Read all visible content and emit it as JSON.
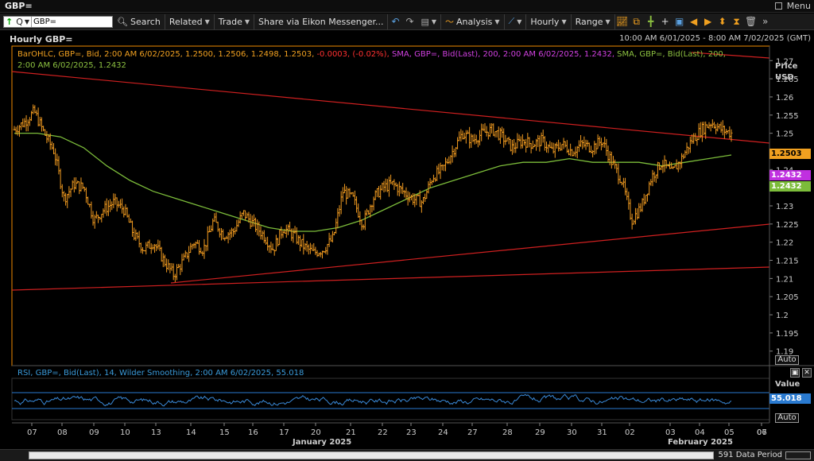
{
  "window": {
    "title": "GBP=",
    "menu_label": "Menu"
  },
  "toolbar": {
    "ric_value": "GBP=",
    "ric_mode": "Q",
    "search_label": "Search",
    "related_label": "Related",
    "trade_label": "Trade",
    "share_label": "Share via Eikon Messenger...",
    "analysis_label": "Analysis",
    "interval_label": "Hourly",
    "range_label": "Range"
  },
  "chart": {
    "title": "Hourly GBP=",
    "date_range": "10:00 AM 6/01/2025 - 8:00 AM 7/02/2025 (GMT)",
    "legend_ohlc_a": "BarOHLC, GBP=, Bid,  2:00 AM 6/02/2025,  1.2500,  1.2506,  1.2498,  1.2503, ",
    "legend_ohlc_b": "-0.0003,  (-0.02%),",
    "legend_sma_magenta": "  SMA, GBP=, Bid(Last),  200,  2:00 AM 6/02/2025,  1.2432,",
    "legend_sma_green": "  SMA, GBP=, Bid(Last),  200,",
    "legend_sma_green_2": "2:00 AM 6/02/2025,  1.2432",
    "price_axis_title": "Price",
    "price_axis_unit": "USD",
    "auto_label": "Auto",
    "last_price": "1.2503",
    "sma_badge_magenta": "1.2432",
    "sma_badge_green": "1.2432"
  },
  "rsi": {
    "legend": "RSI, GBP=, Bid(Last),  14, Wilder Smoothing,  2:00 AM 6/02/2025,  55.018",
    "axis_title": "Value",
    "value": "55.018",
    "auto_label": "Auto"
  },
  "xaxis": {
    "ticks": [
      "07",
      "08",
      "09",
      "10",
      "13",
      "14",
      "15",
      "16",
      "17",
      "20",
      "21",
      "22",
      "23",
      "24",
      "27",
      "28",
      "29",
      "30",
      "31",
      "02",
      "03",
      "04",
      "05",
      "06",
      "07"
    ],
    "month_labels": [
      "January 2025",
      "February 2025"
    ]
  },
  "status": {
    "data_period": "591 Data Period"
  },
  "chart_data": {
    "type": "line",
    "series_type": "ohlc-bars",
    "yaxis": {
      "ticks": [
        "1.27",
        "1.265",
        "1.26",
        "1.255",
        "1.25",
        "1.245",
        "1.24",
        "1.235",
        "1.23",
        "1.225",
        "1.22",
        "1.215",
        "1.21",
        "1.205",
        "1.2",
        "1.195",
        "1.19"
      ],
      "ylim": [
        1.186,
        1.274
      ]
    },
    "price_path": [
      1.251,
      1.253,
      1.256,
      1.25,
      1.245,
      1.232,
      1.236,
      1.235,
      1.226,
      1.229,
      1.231,
      1.229,
      1.222,
      1.218,
      1.22,
      1.215,
      1.211,
      1.215,
      1.22,
      1.218,
      1.226,
      1.222,
      1.223,
      1.228,
      1.225,
      1.222,
      1.218,
      1.224,
      1.222,
      1.219,
      1.217,
      1.218,
      1.221,
      1.234,
      1.232,
      1.225,
      1.232,
      1.235,
      1.236,
      1.234,
      1.232,
      1.231,
      1.238,
      1.24,
      1.245,
      1.25,
      1.248,
      1.25,
      1.251,
      1.249,
      1.246,
      1.248,
      1.247,
      1.248,
      1.245,
      1.247,
      1.245,
      1.247,
      1.246,
      1.248,
      1.242,
      1.237,
      1.226,
      1.23,
      1.238,
      1.242,
      1.239,
      1.243,
      1.248,
      1.251,
      1.253,
      1.251,
      1.25
    ],
    "sma_path": [
      1.25,
      1.25,
      1.249,
      1.246,
      1.241,
      1.237,
      1.234,
      1.232,
      1.23,
      1.228,
      1.226,
      1.224,
      1.223,
      1.223,
      1.224,
      1.226,
      1.229,
      1.232,
      1.235,
      1.237,
      1.239,
      1.241,
      1.242,
      1.242,
      1.243,
      1.242,
      1.242,
      1.242,
      1.241,
      1.242,
      1.243,
      1.244
    ],
    "rsi_levels": [
      70,
      30
    ]
  }
}
